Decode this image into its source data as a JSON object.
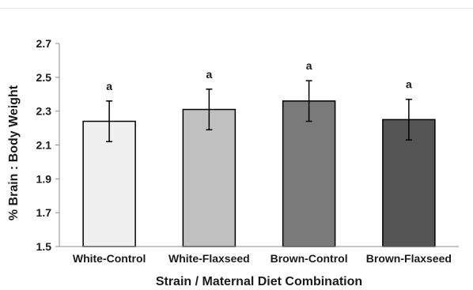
{
  "chart_data": {
    "type": "bar",
    "title": "",
    "xlabel": "Strain / Maternal Diet Combination",
    "ylabel": "% Brain : Body Weight",
    "ylim": [
      1.5,
      2.7
    ],
    "yticks": [
      "1.5",
      "1.7",
      "1.9",
      "2.1",
      "2.3",
      "2.5",
      "2.7"
    ],
    "categories": [
      "White-Control",
      "White-Flaxseed",
      "Brown-Control",
      "Brown-Flaxseed"
    ],
    "values": [
      2.24,
      2.31,
      2.36,
      2.25
    ],
    "error": [
      0.12,
      0.12,
      0.12,
      0.12
    ],
    "significance": [
      "a",
      "a",
      "a",
      "a"
    ],
    "colors": [
      "#f0f0f0",
      "#c0c0c0",
      "#7a7a7a",
      "#555555"
    ],
    "grid": false,
    "legend": "none"
  }
}
